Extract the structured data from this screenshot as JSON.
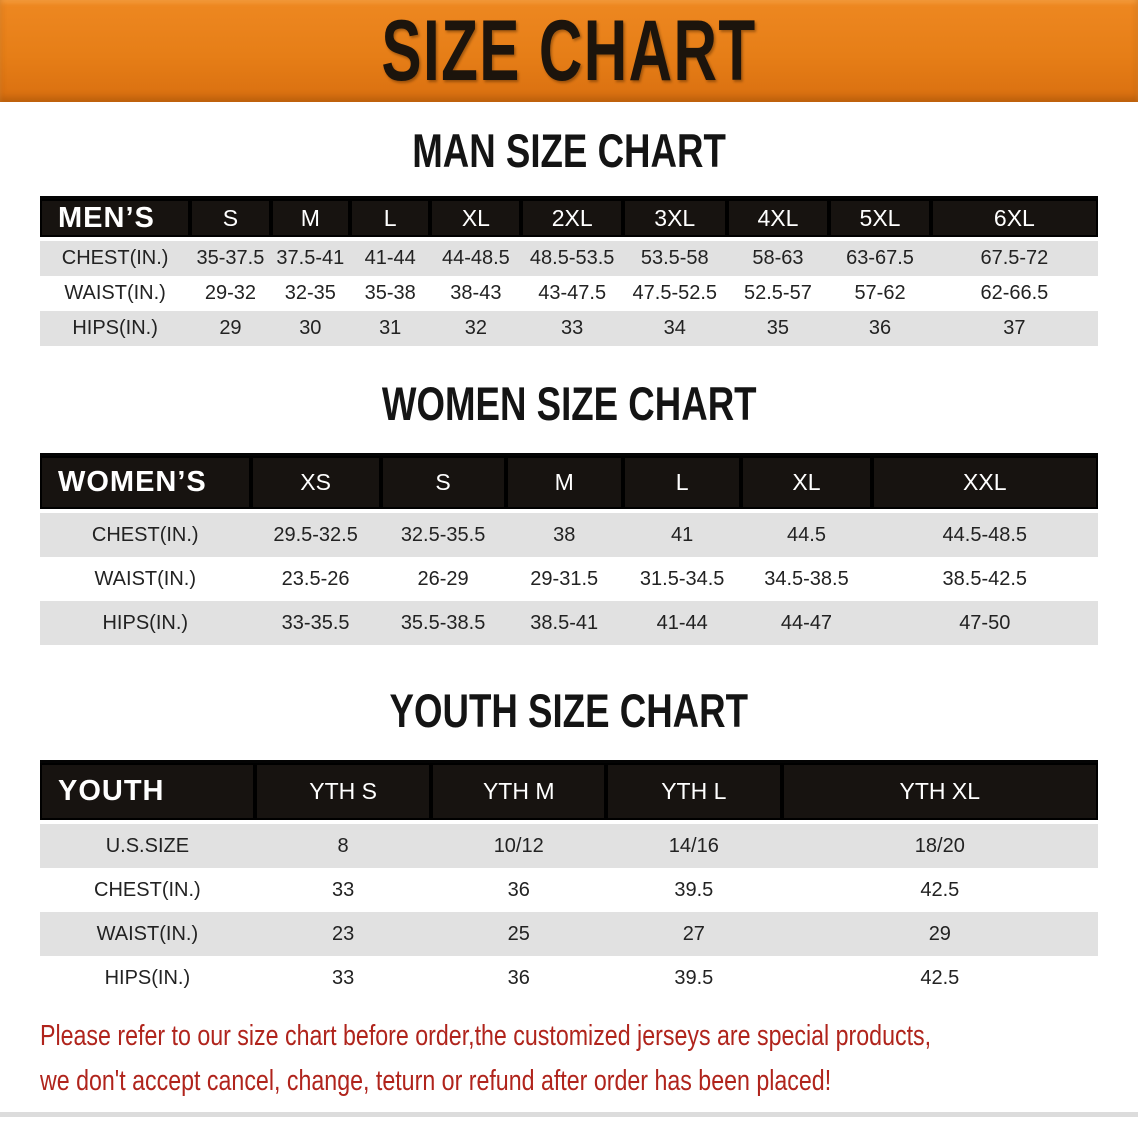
{
  "banner": {
    "title": "SIZE CHART"
  },
  "colors": {
    "banner_bg": "#E67E17",
    "table_header_bg": "#171310",
    "row_stripe": "#E1E1E1",
    "heading_text": "#141414",
    "disclaimer_text": "#B0241C"
  },
  "sections": [
    {
      "heading": "MAN SIZE CHART",
      "table": {
        "header": [
          "MEN’S",
          "S",
          "M",
          "L",
          "XL",
          "2XL",
          "3XL",
          "4XL",
          "5XL",
          "6XL"
        ],
        "rows": [
          [
            "CHEST(IN.)",
            "35-37.5",
            "37.5-41",
            "41-44",
            "44-48.5",
            "48.5-53.5",
            "53.5-58",
            "58-63",
            "63-67.5",
            "67.5-72"
          ],
          [
            "WAIST(IN.)",
            "29-32",
            "32-35",
            "35-38",
            "38-43",
            "43-47.5",
            "47.5-52.5",
            "52.5-57",
            "57-62",
            "62-66.5"
          ],
          [
            "HIPS(IN.)",
            "29",
            "30",
            "31",
            "32",
            "33",
            "34",
            "35",
            "36",
            "37"
          ]
        ]
      }
    },
    {
      "heading": "WOMEN SIZE CHART",
      "table": {
        "header": [
          "WOMEN’S",
          "XS",
          "S",
          "M",
          "L",
          "XL",
          "XXL"
        ],
        "rows": [
          [
            "CHEST(IN.)",
            "29.5-32.5",
            "32.5-35.5",
            "38",
            "41",
            "44.5",
            "44.5-48.5"
          ],
          [
            "WAIST(IN.)",
            "23.5-26",
            "26-29",
            "29-31.5",
            "31.5-34.5",
            "34.5-38.5",
            "38.5-42.5"
          ],
          [
            "HIPS(IN.)",
            "33-35.5",
            "35.5-38.5",
            "38.5-41",
            "41-44",
            "44-47",
            "47-50"
          ]
        ]
      }
    },
    {
      "heading": "YOUTH SIZE CHART",
      "table": {
        "header": [
          "YOUTH",
          "YTH S",
          "YTH M",
          "YTH L",
          "YTH XL"
        ],
        "rows": [
          [
            "U.S.SIZE",
            "8",
            "10/12",
            "14/16",
            "18/20"
          ],
          [
            "CHEST(IN.)",
            "33",
            "36",
            "39.5",
            "42.5"
          ],
          [
            "WAIST(IN.)",
            "23",
            "25",
            "27",
            "29"
          ],
          [
            "HIPS(IN.)",
            "33",
            "36",
            "39.5",
            "42.5"
          ]
        ]
      }
    }
  ],
  "disclaimer": {
    "line1": "Please refer to our size chart before order,the customized jerseys are special products,",
    "line2": "we don't accept cancel, change, teturn or refund after order has been placed!"
  }
}
